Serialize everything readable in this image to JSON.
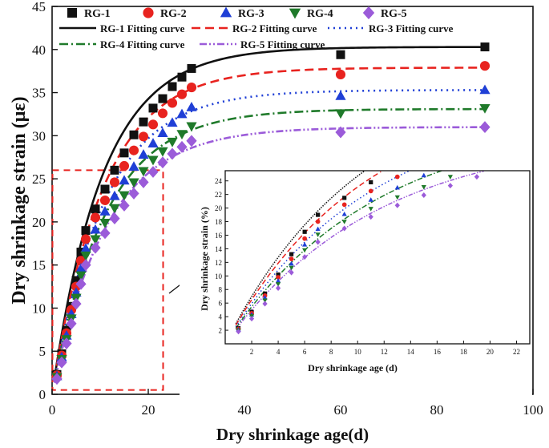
{
  "chart_data": [
    {
      "type": "scatter",
      "title": "",
      "xlabel": "Dry shrinkage age(d)",
      "ylabel": "Dry shrinkage strain (με)",
      "xlim": [
        0,
        100
      ],
      "ylim": [
        0,
        45
      ],
      "xticks": [
        "0",
        "20",
        "40",
        "60",
        "80",
        "100"
      ],
      "yticks": [
        "0",
        "5",
        "10",
        "15",
        "20",
        "25",
        "30",
        "35",
        "40",
        "45"
      ],
      "legend_position": "top",
      "series": [
        {
          "name": "RG-1",
          "marker": "square",
          "color": "#111111",
          "fit_name": "RG-1 Fitting curve",
          "fit_style": "solid",
          "fit": {
            "a": 40.3,
            "b": 0.095
          },
          "x": [
            1,
            2,
            3,
            4,
            5,
            6,
            7,
            9,
            11,
            13,
            15,
            17,
            19,
            21,
            23,
            25,
            27,
            29,
            60,
            90
          ],
          "values": [
            2.3,
            4.7,
            7.4,
            10.2,
            13.2,
            16.5,
            19.0,
            21.5,
            23.8,
            26.0,
            28.0,
            30.1,
            31.6,
            33.2,
            34.3,
            35.7,
            36.8,
            37.8,
            39.4,
            40.3
          ]
        },
        {
          "name": "RG-2",
          "marker": "circle",
          "color": "#e8231f",
          "fit_name": "RG-2 Fitting curve",
          "fit_style": "dashed",
          "fit": {
            "a": 37.9,
            "b": 0.094
          },
          "x": [
            1,
            2,
            3,
            4,
            5,
            6,
            7,
            9,
            11,
            13,
            15,
            17,
            19,
            21,
            23,
            25,
            27,
            29,
            60,
            90
          ],
          "values": [
            2.2,
            4.5,
            7.1,
            9.8,
            12.5,
            15.5,
            18.0,
            20.5,
            22.5,
            24.6,
            26.5,
            28.3,
            29.9,
            31.3,
            32.6,
            33.8,
            34.8,
            35.6,
            37.1,
            38.1
          ]
        },
        {
          "name": "RG-3",
          "marker": "triangle-up",
          "color": "#1f3fd6",
          "fit_name": "RG-3 Fitting curve",
          "fit_style": "dotted",
          "fit": {
            "a": 35.3,
            "b": 0.092
          },
          "x": [
            1,
            2,
            3,
            4,
            5,
            6,
            7,
            9,
            11,
            13,
            15,
            17,
            19,
            21,
            23,
            25,
            27,
            29,
            60,
            90
          ],
          "values": [
            2.1,
            4.3,
            6.8,
            9.3,
            11.8,
            14.6,
            16.9,
            19.1,
            21.2,
            23.0,
            24.8,
            26.4,
            27.8,
            29.1,
            30.3,
            31.5,
            32.5,
            33.3,
            34.6,
            35.3
          ]
        },
        {
          "name": "RG-4",
          "marker": "triangle-down",
          "color": "#1f7a2a",
          "fit_name": "RG-4 Fitting curve",
          "fit_style": "dash-dot",
          "fit": {
            "a": 33.1,
            "b": 0.09
          },
          "x": [
            1,
            2,
            3,
            4,
            5,
            6,
            7,
            9,
            11,
            13,
            15,
            17,
            19,
            21,
            23,
            25,
            27,
            29,
            60,
            90
          ],
          "values": [
            2.0,
            4.1,
            6.4,
            8.8,
            11.2,
            13.8,
            16.1,
            18.0,
            19.9,
            21.6,
            23.1,
            24.6,
            25.9,
            27.2,
            28.2,
            29.3,
            30.2,
            31.1,
            32.6,
            33.2
          ]
        },
        {
          "name": "RG-5",
          "marker": "diamond",
          "color": "#9b5bd9",
          "fit_name": "RG-5 Fitting curve",
          "fit_style": "dash-dot-dot",
          "fit": {
            "a": 31.0,
            "b": 0.088
          },
          "x": [
            1,
            2,
            3,
            4,
            5,
            6,
            7,
            9,
            11,
            13,
            15,
            17,
            19,
            21,
            23,
            25,
            27,
            29,
            60,
            90
          ],
          "values": [
            1.8,
            3.7,
            5.9,
            8.2,
            10.5,
            12.8,
            15.0,
            17.0,
            18.7,
            20.4,
            21.9,
            23.3,
            24.6,
            25.8,
            26.9,
            27.9,
            28.7,
            29.4,
            30.4,
            31.0
          ]
        }
      ]
    },
    {
      "type": "scatter",
      "title": "",
      "xlabel": "Dry shrinkage age (d)",
      "ylabel": "Dry shrinkage strain (%)",
      "xlim": [
        0,
        23
      ],
      "ylim": [
        0,
        25.5
      ],
      "xticks": [
        "2",
        "4",
        "6",
        "8",
        "10",
        "12",
        "14",
        "16",
        "18",
        "20",
        "22"
      ],
      "yticks": [
        "2",
        "4",
        "6",
        "8",
        "10",
        "12",
        "14",
        "16",
        "18",
        "20",
        "22",
        "24"
      ],
      "zoom_region": {
        "x": [
          0,
          23
        ],
        "y": [
          0.5,
          26
        ]
      },
      "note": "enlarged view of the early-age data of the main chart"
    }
  ]
}
